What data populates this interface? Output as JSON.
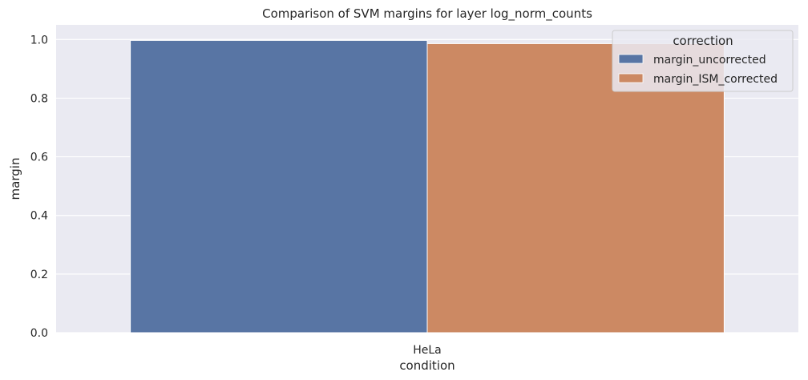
{
  "chart_data": {
    "type": "bar",
    "title": "Comparison of SVM margins for layer log_norm_counts",
    "xlabel": "condition",
    "ylabel": "margin",
    "categories": [
      "HeLa"
    ],
    "ylim": [
      0,
      1.05
    ],
    "yticks": [
      0.0,
      0.2,
      0.4,
      0.6,
      0.8,
      1.0
    ],
    "ytick_labels": [
      "0.0",
      "0.2",
      "0.4",
      "0.6",
      "0.8",
      "1.0"
    ],
    "grid": true,
    "legend": {
      "title": "correction",
      "placement": "top-right"
    },
    "series": [
      {
        "name": "margin_uncorrected",
        "values": [
          0.997
        ],
        "color": "#5875a4"
      },
      {
        "name": "margin_ISM_corrected",
        "values": [
          0.986
        ],
        "color": "#cc8963"
      }
    ]
  },
  "colors": {
    "plot_background": "#eaeaf2",
    "grid": "#ffffff",
    "text": "#262626"
  }
}
